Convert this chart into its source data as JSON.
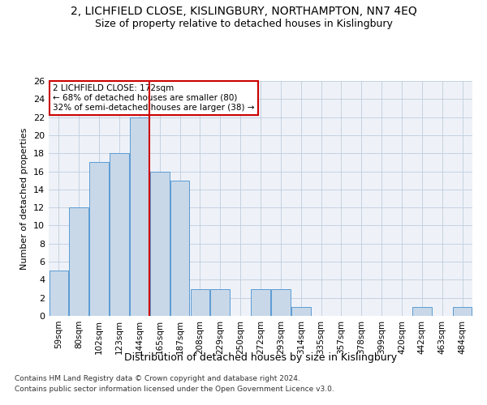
{
  "title": "2, LICHFIELD CLOSE, KISLINGBURY, NORTHAMPTON, NN7 4EQ",
  "subtitle": "Size of property relative to detached houses in Kislingbury",
  "xlabel": "Distribution of detached houses by size in Kislingbury",
  "ylabel": "Number of detached properties",
  "footer_line1": "Contains HM Land Registry data © Crown copyright and database right 2024.",
  "footer_line2": "Contains public sector information licensed under the Open Government Licence v3.0.",
  "categories": [
    "59sqm",
    "80sqm",
    "102sqm",
    "123sqm",
    "144sqm",
    "165sqm",
    "187sqm",
    "208sqm",
    "229sqm",
    "250sqm",
    "272sqm",
    "293sqm",
    "314sqm",
    "335sqm",
    "357sqm",
    "378sqm",
    "399sqm",
    "420sqm",
    "442sqm",
    "463sqm",
    "484sqm"
  ],
  "values": [
    5,
    12,
    17,
    18,
    22,
    16,
    15,
    3,
    3,
    0,
    3,
    3,
    1,
    0,
    0,
    0,
    0,
    0,
    1,
    0,
    1
  ],
  "bar_color": "#c8d8e8",
  "bar_edge_color": "#5b9bd5",
  "vline_x": 4.5,
  "vline_color": "#cc0000",
  "annotation_text": "2 LICHFIELD CLOSE: 172sqm\n← 68% of detached houses are smaller (80)\n32% of semi-detached houses are larger (38) →",
  "annotation_box_color": "#cc0000",
  "ylim": [
    0,
    26
  ],
  "yticks": [
    0,
    2,
    4,
    6,
    8,
    10,
    12,
    14,
    16,
    18,
    20,
    22,
    24,
    26
  ],
  "grid_color": "#c0ccdd",
  "bg_color": "#eef2f8",
  "title_fontsize": 10,
  "subtitle_fontsize": 9,
  "footer_fontsize": 6.5,
  "ylabel_fontsize": 8,
  "xlabel_fontsize": 9
}
